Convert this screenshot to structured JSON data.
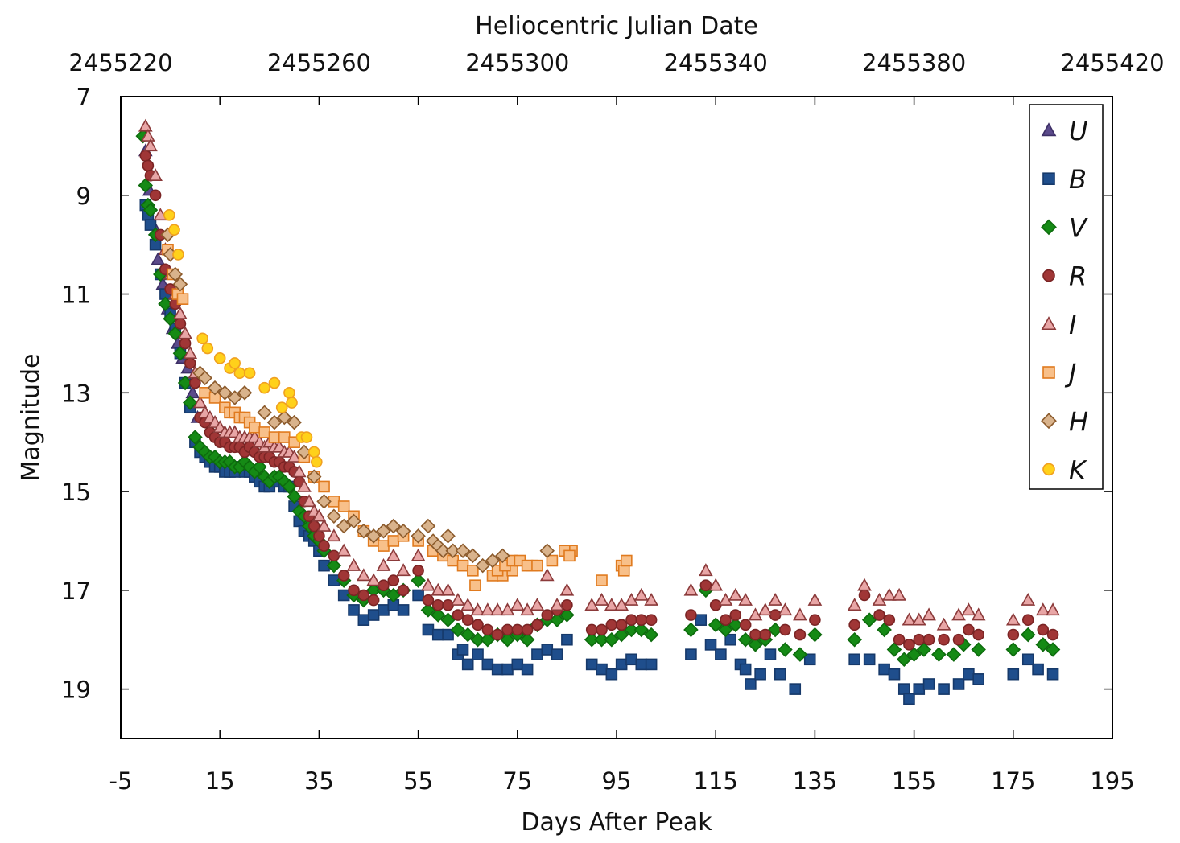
{
  "chart_data": {
    "type": "scatter",
    "xlabel": "Days After Peak",
    "ylabel": "Magnitude",
    "x2label": "Heliocentric Julian Date",
    "xlim": [
      -5,
      195
    ],
    "ylim": [
      20,
      7
    ],
    "y_inverted": true,
    "x_ticks": [
      "-5",
      "15",
      "35",
      "55",
      "75",
      "95",
      "115",
      "135",
      "155",
      "175",
      "195"
    ],
    "y_ticks": [
      "7",
      "9",
      "11",
      "13",
      "15",
      "17",
      "19"
    ],
    "x2_ticks": [
      "2455220",
      "2455260",
      "2455300",
      "2455340",
      "2455380",
      "2455420"
    ],
    "legend_position": "top-right",
    "series": [
      {
        "name": "U",
        "color": "#5b4a8b",
        "stroke": "#3d2f66",
        "marker": "triangle",
        "x": [
          0,
          0.8,
          1.5,
          2.5,
          3.5,
          4.5,
          5.5,
          6.5,
          7.5,
          8.5,
          9.5,
          10.5
        ],
        "y": [
          8.1,
          8.9,
          9.6,
          10.3,
          10.8,
          11.3,
          11.7,
          12.0,
          12.3,
          12.5,
          13.0,
          13.5
        ]
      },
      {
        "name": "B",
        "color": "#1f4e8c",
        "stroke": "#16396a",
        "marker": "square",
        "x": [
          0,
          0.5,
          1,
          2,
          3,
          4,
          5,
          6,
          7,
          8,
          9,
          10,
          11,
          12,
          13,
          14,
          15,
          16,
          17,
          18,
          19,
          20,
          21,
          22,
          23,
          24,
          25,
          26,
          27,
          28,
          29,
          30,
          31,
          32,
          33,
          34,
          35,
          36,
          38,
          40,
          42,
          44,
          46,
          48,
          50,
          52,
          55,
          57,
          59,
          61,
          63,
          64,
          65,
          67,
          69,
          71,
          73,
          75,
          77,
          79,
          81,
          83,
          85,
          90,
          92,
          94,
          96,
          98,
          100,
          102,
          110,
          112,
          114,
          116,
          118,
          120,
          121,
          122,
          124,
          126,
          128,
          131,
          134,
          143,
          146,
          149,
          151,
          153,
          154,
          156,
          158,
          161,
          164,
          166,
          168,
          175,
          178,
          180,
          183
        ],
        "y": [
          9.2,
          9.4,
          9.6,
          10.0,
          10.6,
          11.0,
          11.4,
          11.7,
          12.2,
          12.8,
          13.3,
          14.0,
          14.2,
          14.3,
          14.4,
          14.5,
          14.5,
          14.6,
          14.6,
          14.6,
          14.5,
          14.6,
          14.6,
          14.7,
          14.8,
          14.9,
          14.9,
          14.8,
          14.8,
          14.9,
          14.9,
          15.3,
          15.6,
          15.8,
          15.9,
          16.0,
          16.2,
          16.5,
          16.8,
          17.1,
          17.4,
          17.6,
          17.5,
          17.4,
          17.3,
          17.4,
          17.1,
          17.8,
          17.9,
          17.9,
          18.3,
          18.2,
          18.5,
          18.3,
          18.5,
          18.6,
          18.6,
          18.5,
          18.6,
          18.3,
          18.2,
          18.3,
          18.0,
          18.5,
          18.6,
          18.7,
          18.5,
          18.4,
          18.5,
          18.5,
          18.3,
          17.6,
          18.1,
          18.3,
          18.0,
          18.5,
          18.6,
          18.9,
          18.7,
          18.3,
          18.7,
          19.0,
          18.4,
          18.4,
          18.4,
          18.6,
          18.7,
          19.0,
          19.2,
          19.0,
          18.9,
          19.0,
          18.9,
          18.7,
          18.8,
          18.7,
          18.4,
          18.6,
          18.7
        ]
      },
      {
        "name": "V",
        "color": "#158a15",
        "stroke": "#0d6b0d",
        "marker": "diamond",
        "x": [
          -0.5,
          0,
          0.5,
          1,
          2,
          3,
          4,
          5,
          6,
          7,
          8,
          9,
          10,
          11,
          12,
          13,
          14,
          15,
          16,
          17,
          18,
          19,
          20,
          21,
          22,
          23,
          24,
          25,
          26,
          27,
          28,
          29,
          30,
          31,
          32,
          33,
          34,
          35,
          36,
          38,
          40,
          42,
          44,
          46,
          48,
          50,
          52,
          55,
          57,
          59,
          61,
          63,
          65,
          67,
          69,
          71,
          73,
          75,
          77,
          79,
          81,
          83,
          85,
          90,
          92,
          94,
          96,
          98,
          100,
          102,
          110,
          113,
          115,
          117,
          119,
          121,
          123,
          125,
          127,
          129,
          132,
          135,
          143,
          146,
          149,
          151,
          153,
          155,
          157,
          160,
          163,
          165,
          168,
          175,
          178,
          181,
          183
        ],
        "y": [
          7.8,
          8.8,
          9.2,
          9.3,
          9.8,
          10.6,
          11.2,
          11.5,
          11.8,
          12.2,
          12.8,
          13.2,
          13.9,
          14.1,
          14.2,
          14.3,
          14.3,
          14.4,
          14.4,
          14.4,
          14.5,
          14.5,
          14.4,
          14.5,
          14.6,
          14.5,
          14.7,
          14.8,
          14.7,
          14.7,
          14.8,
          14.9,
          15.1,
          15.4,
          15.5,
          15.7,
          15.9,
          16.0,
          16.2,
          16.5,
          16.8,
          17.1,
          17.2,
          17.0,
          17.0,
          17.1,
          17.0,
          16.8,
          17.4,
          17.5,
          17.6,
          17.8,
          17.9,
          18.0,
          18.0,
          17.9,
          18.0,
          17.9,
          18.0,
          17.7,
          17.6,
          17.6,
          17.5,
          18.0,
          18.0,
          18.0,
          17.9,
          17.8,
          17.8,
          17.9,
          17.8,
          17.0,
          17.7,
          17.8,
          17.7,
          18.0,
          18.1,
          18.0,
          17.8,
          18.2,
          18.3,
          17.9,
          18.0,
          17.6,
          17.8,
          18.2,
          18.4,
          18.3,
          18.2,
          18.3,
          18.3,
          18.1,
          18.2,
          18.2,
          17.9,
          18.1,
          18.2
        ]
      },
      {
        "name": "R",
        "color": "#a03636",
        "stroke": "#7a2424",
        "marker": "circle",
        "x": [
          0,
          0.5,
          1,
          2,
          3,
          4,
          5,
          6,
          7,
          8,
          9,
          10,
          11,
          12,
          13,
          14,
          15,
          16,
          17,
          18,
          19,
          20,
          21,
          22,
          23,
          24,
          25,
          26,
          27,
          28,
          29,
          30,
          31,
          32,
          33,
          34,
          35,
          36,
          38,
          40,
          42,
          44,
          46,
          48,
          50,
          52,
          55,
          57,
          59,
          61,
          63,
          65,
          67,
          69,
          71,
          73,
          75,
          77,
          79,
          81,
          83,
          85,
          90,
          92,
          94,
          96,
          98,
          100,
          102,
          110,
          113,
          115,
          117,
          119,
          121,
          123,
          125,
          127,
          129,
          132,
          135,
          143,
          145,
          148,
          150,
          152,
          154,
          156,
          158,
          161,
          164,
          166,
          168,
          175,
          178,
          181,
          183
        ],
        "y": [
          8.2,
          8.4,
          8.6,
          9.0,
          9.8,
          10.5,
          10.9,
          11.2,
          11.6,
          12.0,
          12.4,
          12.8,
          13.5,
          13.6,
          13.8,
          13.9,
          14.0,
          14.0,
          14.1,
          14.1,
          14.1,
          14.2,
          14.1,
          14.2,
          14.3,
          14.3,
          14.3,
          14.4,
          14.4,
          14.5,
          14.5,
          14.6,
          14.8,
          15.2,
          15.5,
          15.7,
          15.9,
          16.1,
          16.3,
          16.7,
          17.0,
          17.1,
          17.2,
          16.9,
          16.8,
          17.0,
          16.6,
          17.2,
          17.3,
          17.3,
          17.5,
          17.6,
          17.7,
          17.8,
          17.9,
          17.8,
          17.8,
          17.8,
          17.7,
          17.5,
          17.4,
          17.3,
          17.8,
          17.8,
          17.7,
          17.7,
          17.6,
          17.6,
          17.6,
          17.5,
          16.9,
          17.3,
          17.6,
          17.5,
          17.7,
          17.9,
          17.9,
          17.5,
          17.8,
          17.9,
          17.6,
          17.7,
          17.1,
          17.5,
          17.6,
          18.0,
          18.1,
          18.0,
          18.0,
          18.0,
          18.0,
          17.8,
          17.9,
          17.9,
          17.6,
          17.8,
          17.9
        ]
      },
      {
        "name": "I",
        "color": "#e8a6a6",
        "stroke": "#8b3a3a",
        "marker": "triangle",
        "x": [
          0,
          0.5,
          1,
          2,
          3,
          4,
          5,
          6,
          7,
          8,
          9,
          10,
          11,
          12,
          13,
          14,
          15,
          16,
          17,
          18,
          19,
          20,
          21,
          22,
          23,
          24,
          25,
          26,
          27,
          28,
          29,
          30,
          31,
          32,
          33,
          34,
          35,
          36,
          38,
          40,
          42,
          44,
          46,
          48,
          50,
          52,
          55,
          57,
          59,
          61,
          63,
          65,
          67,
          69,
          71,
          73,
          75,
          77,
          79,
          81,
          83,
          85,
          90,
          92,
          94,
          96,
          98,
          100,
          102,
          110,
          113,
          115,
          117,
          119,
          121,
          123,
          125,
          127,
          129,
          132,
          135,
          143,
          145,
          148,
          150,
          152,
          154,
          156,
          158,
          161,
          164,
          166,
          168,
          175,
          178,
          181,
          183
        ],
        "y": [
          7.6,
          7.8,
          8.0,
          8.6,
          9.4,
          10.1,
          10.6,
          11.0,
          11.4,
          11.8,
          12.2,
          12.6,
          13.2,
          13.4,
          13.5,
          13.6,
          13.7,
          13.8,
          13.8,
          13.8,
          13.9,
          13.9,
          13.9,
          13.9,
          14.0,
          14.1,
          14.0,
          14.1,
          14.1,
          14.2,
          14.2,
          14.3,
          14.6,
          14.9,
          15.2,
          15.4,
          15.5,
          15.7,
          15.9,
          16.2,
          16.5,
          16.7,
          16.8,
          16.5,
          16.3,
          16.6,
          16.3,
          16.9,
          17.0,
          17.0,
          17.2,
          17.3,
          17.4,
          17.4,
          17.4,
          17.4,
          17.3,
          17.4,
          17.3,
          16.7,
          17.3,
          17.0,
          17.3,
          17.2,
          17.3,
          17.3,
          17.2,
          17.1,
          17.2,
          17.0,
          16.6,
          16.9,
          17.2,
          17.1,
          17.2,
          17.5,
          17.4,
          17.2,
          17.4,
          17.5,
          17.2,
          17.3,
          16.9,
          17.2,
          17.1,
          17.1,
          17.6,
          17.6,
          17.5,
          17.7,
          17.5,
          17.4,
          17.5,
          17.6,
          17.2,
          17.4,
          17.4
        ]
      },
      {
        "name": "J",
        "color": "#f8c08a",
        "stroke": "#e07a1e",
        "marker": "square",
        "x": [
          4.5,
          5.5,
          6.5,
          7.5,
          12,
          14,
          16,
          17,
          18,
          19,
          20,
          21,
          22,
          24,
          26,
          28,
          30,
          32,
          34,
          36,
          38,
          40,
          42,
          44,
          46,
          48,
          50,
          52,
          55,
          58,
          60,
          62,
          64,
          66,
          70,
          72,
          74,
          78,
          82,
          86,
          92,
          96
        ],
        "y": [
          10.1,
          10.6,
          11.0,
          11.1,
          13.0,
          13.1,
          13.3,
          13.4,
          13.4,
          13.5,
          13.5,
          13.6,
          13.7,
          13.8,
          13.9,
          13.9,
          14.0,
          14.3,
          14.7,
          14.9,
          15.2,
          15.3,
          15.5,
          15.8,
          16.0,
          16.1,
          16.0,
          15.9,
          16.0,
          16.2,
          16.3,
          16.4,
          16.5,
          16.6,
          16.7,
          16.7,
          16.6,
          16.5,
          16.4,
          16.2,
          16.8,
          16.5
        ],
        "x_extra": [
          66.5,
          71,
          72.5,
          74,
          75.5,
          77,
          79,
          84.5,
          85.5,
          96.5,
          97
        ],
        "y_extra": [
          16.9,
          16.6,
          16.5,
          16.4,
          16.4,
          16.5,
          16.5,
          16.2,
          16.3,
          16.6,
          16.4
        ]
      },
      {
        "name": "H",
        "color": "#d9b38c",
        "stroke": "#8b5a2b",
        "marker": "diamond",
        "x": [
          4.5,
          5,
          6,
          7,
          11,
          12,
          14,
          16,
          18,
          20,
          24,
          26,
          28,
          30,
          32,
          34,
          36,
          38,
          40,
          42,
          44,
          46,
          48,
          50,
          52,
          55,
          57,
          58,
          59,
          60,
          61,
          62,
          64,
          66,
          68,
          70,
          72,
          81
        ],
        "y": [
          9.8,
          10.2,
          10.6,
          10.8,
          12.6,
          12.7,
          12.9,
          13.0,
          13.1,
          13.0,
          13.4,
          13.6,
          13.5,
          13.6,
          14.2,
          14.7,
          15.2,
          15.5,
          15.7,
          15.6,
          15.8,
          15.9,
          15.8,
          15.7,
          15.8,
          15.9,
          15.7,
          16.0,
          16.1,
          16.2,
          15.9,
          16.2,
          16.2,
          16.3,
          16.5,
          16.4,
          16.3,
          16.2
        ]
      },
      {
        "name": "K",
        "color": "#ffd11a",
        "stroke": "#f0a020",
        "marker": "circle",
        "x": [
          4.8,
          5.8,
          6.6,
          11.5,
          12.5,
          15,
          17,
          18,
          19,
          21,
          24,
          26,
          27.5,
          29,
          29.5,
          31.5,
          32.5,
          34,
          34.5
        ],
        "y": [
          9.4,
          9.7,
          10.2,
          11.9,
          12.1,
          12.3,
          12.5,
          12.4,
          12.6,
          12.6,
          12.9,
          12.8,
          13.3,
          13.0,
          13.2,
          13.9,
          13.9,
          14.2,
          14.4
        ]
      }
    ]
  }
}
